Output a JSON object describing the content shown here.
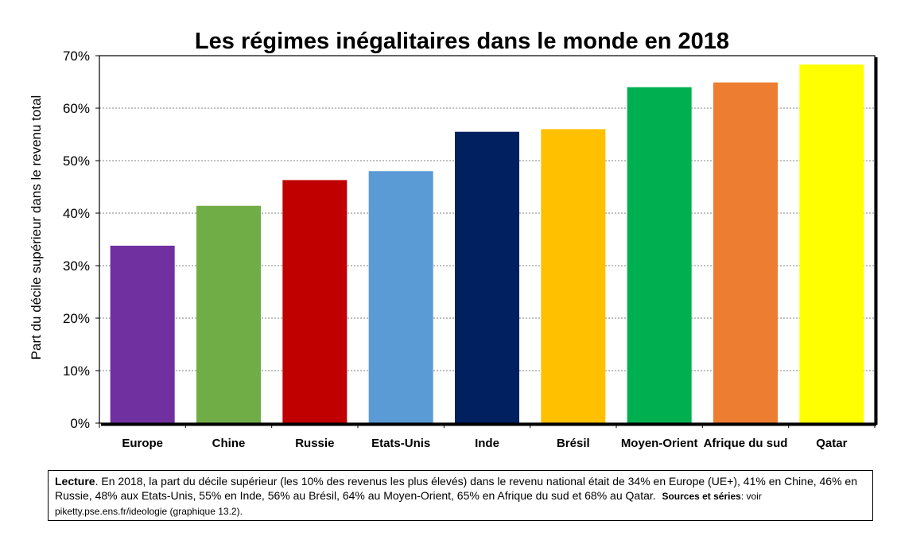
{
  "chart_data": {
    "type": "bar",
    "title": "Les régimes inégalitaires dans le monde en 2018",
    "xlabel": "",
    "ylabel": "Part du décile supérieur dans le revenu total",
    "ylim": [
      0,
      70
    ],
    "yticks": [
      "0%",
      "10%",
      "20%",
      "30%",
      "40%",
      "50%",
      "60%",
      "70%"
    ],
    "grid": true,
    "categories": [
      "Europe",
      "Chine",
      "Russie",
      "Etats-Unis",
      "Inde",
      "Brésil",
      "Moyen-Orient",
      "Afrique du sud",
      "Qatar"
    ],
    "values": [
      33.8,
      41.4,
      46.3,
      48.0,
      55.5,
      56.0,
      64.0,
      64.9,
      68.3
    ],
    "colors": [
      "#7030a0",
      "#70ad47",
      "#c00000",
      "#5b9bd5",
      "#002060",
      "#ffc000",
      "#00b050",
      "#ed7d31",
      "#ffff00"
    ]
  },
  "note": {
    "lead": "Lecture",
    "text": ". En 2018, la part du décile supérieur (les 10% des revenus les plus élevés) dans le revenu national était de 34% en Europe (UE+), 41% en Chine, 46% en Russie, 48% aux Etats-Unis, 55% en Inde, 56% au Brésil, 64% au Moyen-Orient, 65% en Afrique du sud et 68% au Qatar.",
    "sources_label": "Sources et séries",
    "sources_text": ": voir piketty.pse.ens.fr/ideologie (graphique 13.2)."
  }
}
